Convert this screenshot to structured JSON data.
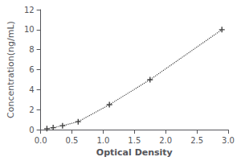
{
  "chart_data": {
    "type": "line",
    "x": [
      0.1,
      0.2,
      0.35,
      0.6,
      1.1,
      1.75,
      2.9
    ],
    "values": [
      0.1,
      0.2,
      0.4,
      0.8,
      2.5,
      5.0,
      10.0
    ],
    "xlabel": "Optical Density",
    "ylabel": "Concentration(ng/mL)",
    "xlim": [
      0,
      3.0
    ],
    "ylim": [
      0,
      12
    ],
    "xticks": [
      {
        "value": 0,
        "label": "0.0"
      },
      0.5,
      {
        "value": 1.0,
        "label": "1.0"
      },
      1.5,
      {
        "value": 2.0,
        "label": "2.0"
      },
      2.5,
      {
        "value": 3.0,
        "label": "3.0"
      }
    ],
    "yticks": [
      0,
      2,
      4,
      6,
      8,
      10,
      12
    ],
    "color": "#444444",
    "marker": "+",
    "line_style": "dotted",
    "grid": false
  }
}
